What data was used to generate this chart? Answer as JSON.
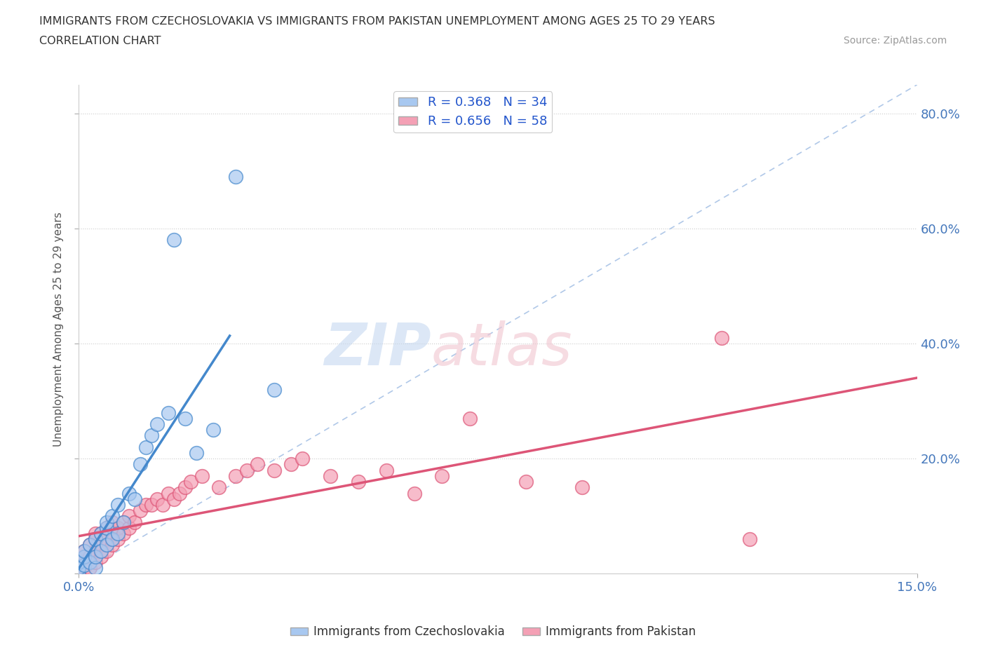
{
  "title_line1": "IMMIGRANTS FROM CZECHOSLOVAKIA VS IMMIGRANTS FROM PAKISTAN UNEMPLOYMENT AMONG AGES 25 TO 29 YEARS",
  "title_line2": "CORRELATION CHART",
  "source_text": "Source: ZipAtlas.com",
  "ylabel": "Unemployment Among Ages 25 to 29 years",
  "xlim": [
    0.0,
    0.15
  ],
  "ylim": [
    0.0,
    0.85
  ],
  "color_czech": "#a8c8f0",
  "color_pakistan": "#f4a0b5",
  "line_color_czech": "#4488cc",
  "line_color_pakistan": "#dd5577",
  "diagonal_color": "#b0c8e8",
  "legend_r1": "R = 0.368   N = 34",
  "legend_r2": "R = 0.656   N = 58",
  "legend_label1": "Immigrants from Czechoslovakia",
  "legend_label2": "Immigrants from Pakistan",
  "czech_x": [
    0.0,
    0.0,
    0.0,
    0.001,
    0.001,
    0.001,
    0.002,
    0.002,
    0.003,
    0.003,
    0.003,
    0.004,
    0.004,
    0.005,
    0.005,
    0.005,
    0.006,
    0.006,
    0.007,
    0.007,
    0.008,
    0.009,
    0.01,
    0.011,
    0.012,
    0.013,
    0.014,
    0.016,
    0.017,
    0.019,
    0.021,
    0.024,
    0.028,
    0.035
  ],
  "czech_y": [
    0.005,
    0.01,
    0.02,
    0.015,
    0.03,
    0.04,
    0.02,
    0.05,
    0.01,
    0.03,
    0.06,
    0.04,
    0.07,
    0.05,
    0.08,
    0.09,
    0.06,
    0.1,
    0.07,
    0.12,
    0.09,
    0.14,
    0.13,
    0.19,
    0.22,
    0.24,
    0.26,
    0.28,
    0.58,
    0.27,
    0.21,
    0.25,
    0.69,
    0.32
  ],
  "pakistan_x": [
    0.0,
    0.0,
    0.0,
    0.001,
    0.001,
    0.001,
    0.001,
    0.002,
    0.002,
    0.002,
    0.003,
    0.003,
    0.003,
    0.003,
    0.004,
    0.004,
    0.004,
    0.005,
    0.005,
    0.005,
    0.006,
    0.006,
    0.006,
    0.007,
    0.007,
    0.008,
    0.008,
    0.009,
    0.009,
    0.01,
    0.011,
    0.012,
    0.013,
    0.014,
    0.015,
    0.016,
    0.017,
    0.018,
    0.019,
    0.02,
    0.022,
    0.025,
    0.028,
    0.03,
    0.032,
    0.035,
    0.038,
    0.04,
    0.045,
    0.05,
    0.055,
    0.06,
    0.065,
    0.07,
    0.08,
    0.09,
    0.115,
    0.12
  ],
  "pakistan_y": [
    0.005,
    0.01,
    0.02,
    0.01,
    0.02,
    0.03,
    0.04,
    0.01,
    0.03,
    0.05,
    0.02,
    0.04,
    0.06,
    0.07,
    0.03,
    0.05,
    0.07,
    0.04,
    0.06,
    0.08,
    0.05,
    0.07,
    0.09,
    0.06,
    0.08,
    0.07,
    0.09,
    0.08,
    0.1,
    0.09,
    0.11,
    0.12,
    0.12,
    0.13,
    0.12,
    0.14,
    0.13,
    0.14,
    0.15,
    0.16,
    0.17,
    0.15,
    0.17,
    0.18,
    0.19,
    0.18,
    0.19,
    0.2,
    0.17,
    0.16,
    0.18,
    0.14,
    0.17,
    0.27,
    0.16,
    0.15,
    0.41,
    0.06
  ]
}
